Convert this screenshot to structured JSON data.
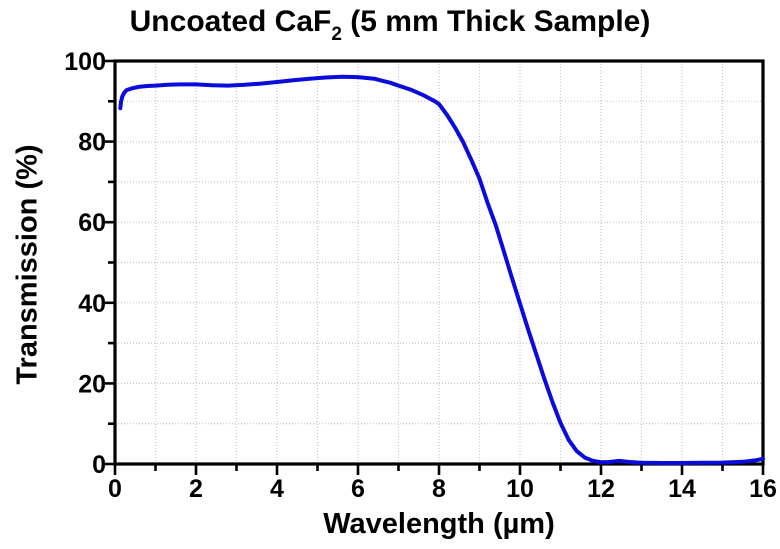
{
  "title": {
    "prefix": "Uncoated CaF",
    "subscript": "2",
    "suffix": " (5 mm Thick Sample)"
  },
  "chart_data": {
    "type": "line",
    "title": "Uncoated CaF2 (5 mm Thick Sample)",
    "xlabel": "Wavelength (µm)",
    "ylabel": "Transmission (%)",
    "xlim": [
      0,
      16
    ],
    "ylim": [
      0,
      100
    ],
    "x_major_ticks": [
      0,
      2,
      4,
      6,
      8,
      10,
      12,
      14,
      16
    ],
    "x_minor_step": 1,
    "y_major_ticks": [
      0,
      20,
      40,
      60,
      80,
      100
    ],
    "y_minor_step": 10,
    "grid": "dotted gray lines at every minor tick (1 µm horizontal spacing, 10 % vertical spacing)",
    "legend": "none",
    "colors": {
      "line": "#0b0bdc",
      "grid": "#c6c6c6",
      "frame": "#000000",
      "background": "#ffffff"
    },
    "series": [
      {
        "name": "Transmission",
        "points": [
          [
            0.13,
            88.3
          ],
          [
            0.15,
            90.0
          ],
          [
            0.18,
            91.2
          ],
          [
            0.22,
            92.0
          ],
          [
            0.28,
            92.7
          ],
          [
            0.35,
            93.0
          ],
          [
            0.45,
            93.3
          ],
          [
            0.6,
            93.6
          ],
          [
            0.8,
            93.8
          ],
          [
            1.0,
            93.9
          ],
          [
            1.3,
            94.1
          ],
          [
            1.6,
            94.2
          ],
          [
            2.0,
            94.2
          ],
          [
            2.4,
            94.0
          ],
          [
            2.8,
            93.9
          ],
          [
            3.2,
            94.1
          ],
          [
            3.6,
            94.4
          ],
          [
            4.0,
            94.8
          ],
          [
            4.4,
            95.2
          ],
          [
            4.8,
            95.6
          ],
          [
            5.2,
            95.9
          ],
          [
            5.6,
            96.1
          ],
          [
            6.0,
            96.0
          ],
          [
            6.4,
            95.6
          ],
          [
            6.8,
            94.6
          ],
          [
            7.0,
            93.9
          ],
          [
            7.3,
            92.9
          ],
          [
            7.6,
            91.6
          ],
          [
            7.9,
            90.0
          ],
          [
            8.0,
            89.3
          ],
          [
            8.2,
            86.6
          ],
          [
            8.4,
            83.4
          ],
          [
            8.6,
            79.8
          ],
          [
            8.8,
            75.4
          ],
          [
            9.0,
            70.8
          ],
          [
            9.2,
            64.8
          ],
          [
            9.4,
            59.3
          ],
          [
            9.6,
            52.8
          ],
          [
            9.8,
            46.2
          ],
          [
            10.0,
            39.8
          ],
          [
            10.2,
            33.4
          ],
          [
            10.4,
            27.3
          ],
          [
            10.6,
            21.2
          ],
          [
            10.8,
            15.4
          ],
          [
            11.0,
            10.2
          ],
          [
            11.2,
            6.0
          ],
          [
            11.4,
            3.2
          ],
          [
            11.6,
            1.6
          ],
          [
            11.8,
            0.8
          ],
          [
            12.0,
            0.45
          ],
          [
            12.2,
            0.5
          ],
          [
            12.45,
            0.8
          ],
          [
            12.7,
            0.5
          ],
          [
            13.0,
            0.3
          ],
          [
            13.5,
            0.25
          ],
          [
            14.0,
            0.25
          ],
          [
            14.5,
            0.3
          ],
          [
            15.0,
            0.35
          ],
          [
            15.5,
            0.55
          ],
          [
            15.8,
            0.9
          ],
          [
            16.0,
            1.3
          ]
        ]
      }
    ]
  }
}
